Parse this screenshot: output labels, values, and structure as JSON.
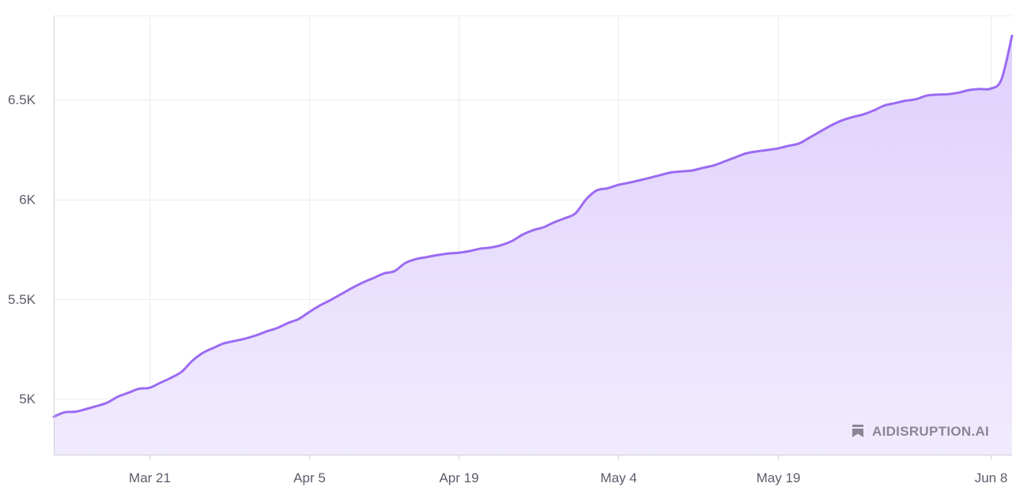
{
  "chart_data": {
    "type": "area",
    "title": "",
    "xlabel": "",
    "ylabel": "",
    "grid": true,
    "colors": {
      "line": "#9b6bf2",
      "fill_top": "#dfd0fc",
      "fill_bottom": "#f1ebfe",
      "grid": "#ececf0",
      "axis": "#cfcfd6"
    },
    "x_ticks": [
      {
        "date": "2024-03-21",
        "label": "Mar 21"
      },
      {
        "date": "2024-04-05",
        "label": "Apr 5"
      },
      {
        "date": "2024-04-19",
        "label": "Apr 19"
      },
      {
        "date": "2024-05-04",
        "label": "May 4"
      },
      {
        "date": "2024-05-19",
        "label": "May 19"
      },
      {
        "date": "2024-06-08",
        "label": "Jun 8"
      }
    ],
    "y_ticks": [
      {
        "value": 5000,
        "label": "5K"
      },
      {
        "value": 5500,
        "label": "5.5K"
      },
      {
        "value": 6000,
        "label": "6K"
      },
      {
        "value": 6500,
        "label": "6.5K"
      }
    ],
    "xlim": [
      "2024-03-12",
      "2024-06-10"
    ],
    "ylim": [
      4720,
      6920
    ],
    "series": [
      {
        "points": [
          [
            "2024-03-12",
            4910
          ],
          [
            "2024-03-13",
            4932
          ],
          [
            "2024-03-14",
            4935
          ],
          [
            "2024-03-15",
            4948
          ],
          [
            "2024-03-16",
            4963
          ],
          [
            "2024-03-17",
            4980
          ],
          [
            "2024-03-18",
            5010
          ],
          [
            "2024-03-19",
            5030
          ],
          [
            "2024-03-20",
            5050
          ],
          [
            "2024-03-21",
            5055
          ],
          [
            "2024-03-22",
            5080
          ],
          [
            "2024-03-23",
            5105
          ],
          [
            "2024-03-24",
            5135
          ],
          [
            "2024-03-25",
            5190
          ],
          [
            "2024-03-26",
            5230
          ],
          [
            "2024-03-27",
            5255
          ],
          [
            "2024-03-28",
            5278
          ],
          [
            "2024-03-29",
            5290
          ],
          [
            "2024-03-30",
            5302
          ],
          [
            "2024-03-31",
            5318
          ],
          [
            "2024-04-01",
            5338
          ],
          [
            "2024-04-02",
            5355
          ],
          [
            "2024-04-03",
            5380
          ],
          [
            "2024-04-04",
            5400
          ],
          [
            "2024-04-05",
            5435
          ],
          [
            "2024-04-06",
            5468
          ],
          [
            "2024-04-07",
            5495
          ],
          [
            "2024-04-08",
            5525
          ],
          [
            "2024-04-09",
            5555
          ],
          [
            "2024-04-10",
            5582
          ],
          [
            "2024-04-11",
            5605
          ],
          [
            "2024-04-12",
            5628
          ],
          [
            "2024-04-13",
            5640
          ],
          [
            "2024-04-14",
            5680
          ],
          [
            "2024-04-15",
            5700
          ],
          [
            "2024-04-16",
            5710
          ],
          [
            "2024-04-17",
            5720
          ],
          [
            "2024-04-18",
            5728
          ],
          [
            "2024-04-19",
            5732
          ],
          [
            "2024-04-20",
            5740
          ],
          [
            "2024-04-21",
            5752
          ],
          [
            "2024-04-22",
            5758
          ],
          [
            "2024-04-23",
            5770
          ],
          [
            "2024-04-24",
            5790
          ],
          [
            "2024-04-25",
            5822
          ],
          [
            "2024-04-26",
            5845
          ],
          [
            "2024-04-27",
            5860
          ],
          [
            "2024-04-28",
            5885
          ],
          [
            "2024-04-29",
            5905
          ],
          [
            "2024-04-30",
            5930
          ],
          [
            "2024-05-01",
            6000
          ],
          [
            "2024-05-02",
            6045
          ],
          [
            "2024-05-03",
            6055
          ],
          [
            "2024-05-04",
            6072
          ],
          [
            "2024-05-05",
            6083
          ],
          [
            "2024-05-06",
            6095
          ],
          [
            "2024-05-07",
            6108
          ],
          [
            "2024-05-08",
            6122
          ],
          [
            "2024-05-09",
            6135
          ],
          [
            "2024-05-10",
            6140
          ],
          [
            "2024-05-11",
            6145
          ],
          [
            "2024-05-12",
            6158
          ],
          [
            "2024-05-13",
            6170
          ],
          [
            "2024-05-14",
            6190
          ],
          [
            "2024-05-15",
            6210
          ],
          [
            "2024-05-16",
            6230
          ],
          [
            "2024-05-17",
            6240
          ],
          [
            "2024-05-18",
            6247
          ],
          [
            "2024-05-19",
            6255
          ],
          [
            "2024-05-20",
            6268
          ],
          [
            "2024-05-21",
            6280
          ],
          [
            "2024-05-22",
            6310
          ],
          [
            "2024-05-23",
            6340
          ],
          [
            "2024-05-24",
            6370
          ],
          [
            "2024-05-25",
            6395
          ],
          [
            "2024-05-26",
            6412
          ],
          [
            "2024-05-27",
            6425
          ],
          [
            "2024-05-28",
            6445
          ],
          [
            "2024-05-29",
            6470
          ],
          [
            "2024-05-30",
            6482
          ],
          [
            "2024-05-31",
            6494
          ],
          [
            "2024-06-01",
            6502
          ],
          [
            "2024-06-02",
            6520
          ],
          [
            "2024-06-03",
            6525
          ],
          [
            "2024-06-04",
            6527
          ],
          [
            "2024-06-05",
            6535
          ],
          [
            "2024-06-06",
            6548
          ],
          [
            "2024-06-07",
            6553
          ],
          [
            "2024-06-08",
            6555
          ],
          [
            "2024-06-09",
            6600
          ],
          [
            "2024-06-10",
            6820
          ]
        ]
      }
    ]
  },
  "watermark": {
    "text": "AIDISRUPTION.AI",
    "icon": "bookmark-icon"
  }
}
